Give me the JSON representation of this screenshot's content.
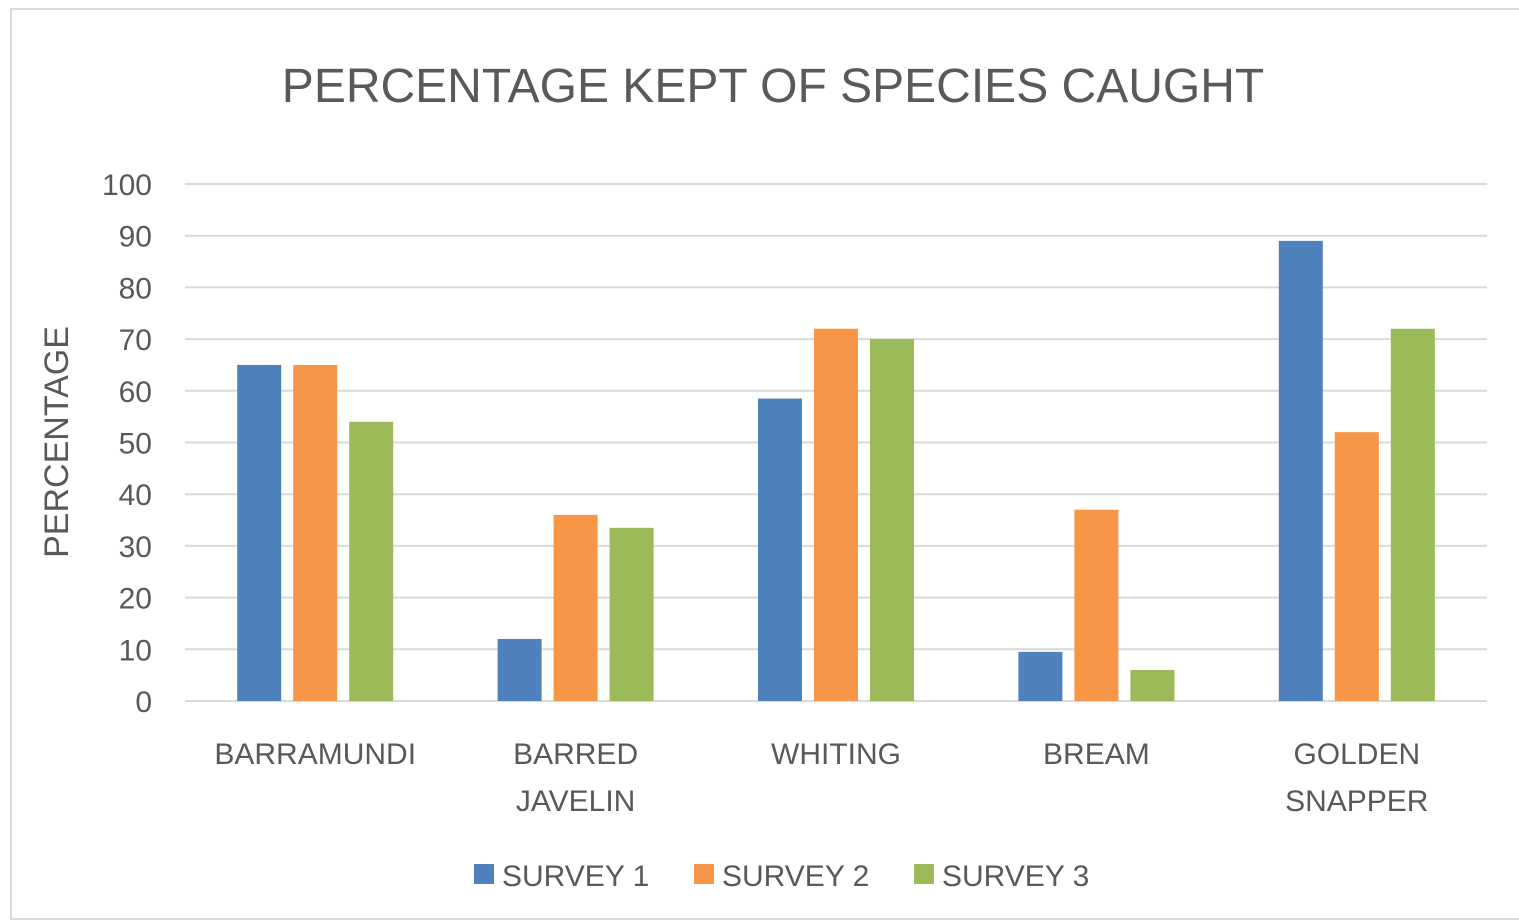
{
  "chart_data": {
    "type": "bar",
    "title": "PERCENTAGE KEPT OF SPECIES CAUGHT",
    "xlabel": "",
    "ylabel": "PERCENTAGE",
    "ylim": [
      0,
      100
    ],
    "yticks": [
      0,
      10,
      20,
      30,
      40,
      50,
      60,
      70,
      80,
      90,
      100
    ],
    "categories": [
      [
        "BARRAMUNDI"
      ],
      [
        "BARRED",
        "JAVELIN"
      ],
      [
        "WHITING"
      ],
      [
        "BREAM"
      ],
      [
        "GOLDEN",
        "SNAPPER"
      ]
    ],
    "series": [
      {
        "name": "SURVEY 1",
        "color": "#4f81bd",
        "values": [
          65,
          12,
          58.5,
          9.5,
          89
        ]
      },
      {
        "name": "SURVEY 2",
        "color": "#f79646",
        "values": [
          65,
          36,
          72,
          37,
          52
        ]
      },
      {
        "name": "SURVEY 3",
        "color": "#9bbb59",
        "values": [
          54,
          33.5,
          70,
          6,
          72
        ]
      }
    ],
    "grid": true,
    "legend_position": "bottom"
  }
}
